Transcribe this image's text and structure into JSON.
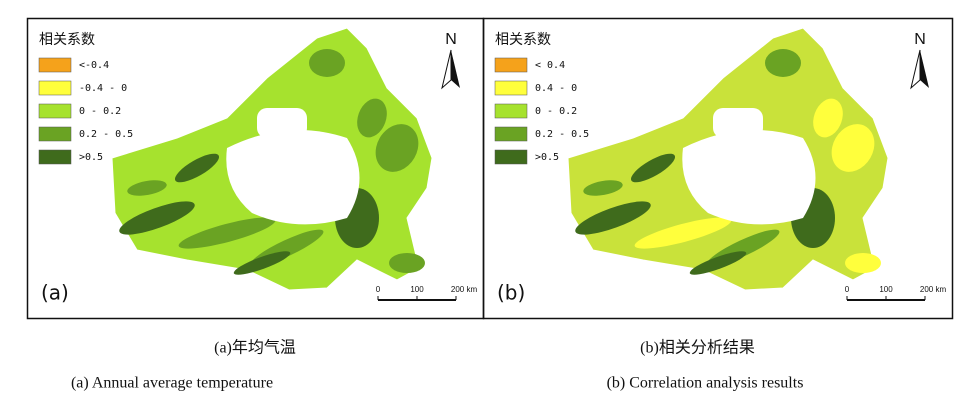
{
  "panels": [
    {
      "label": "(a)",
      "north": "N",
      "scale": [
        "0",
        "100",
        "200 km"
      ],
      "legend": {
        "title": "相关系数",
        "items": [
          {
            "label": "<-0.4",
            "color": "#f5a21b"
          },
          {
            "label": "-0.4 - 0",
            "color": "#ffff3c"
          },
          {
            "label": "0 - 0.2",
            "color": "#a6e22e"
          },
          {
            "label": "0.2 - 0.5",
            "color": "#6aa323"
          },
          {
            "label": ">0.5",
            "color": "#3f6b1c"
          }
        ]
      },
      "caption_zh": "(a)年均气温",
      "caption_en": "(a) Annual average temperature"
    },
    {
      "label": "(b)",
      "north": "N",
      "scale": [
        "0",
        "100",
        "200 km"
      ],
      "legend": {
        "title": "相关系数",
        "items": [
          {
            "label": "< 0.4",
            "color": "#f5a21b"
          },
          {
            "label": "0.4 - 0",
            "color": "#ffff3c"
          },
          {
            "label": "0 - 0.2",
            "color": "#a6e22e"
          },
          {
            "label": "0.2 - 0.5",
            "color": "#6aa323"
          },
          {
            "label": ">0.5",
            "color": "#3f6b1c"
          }
        ]
      },
      "caption_zh": "(b)相关分析结果",
      "caption_en": "(b) Correlation analysis results"
    }
  ]
}
